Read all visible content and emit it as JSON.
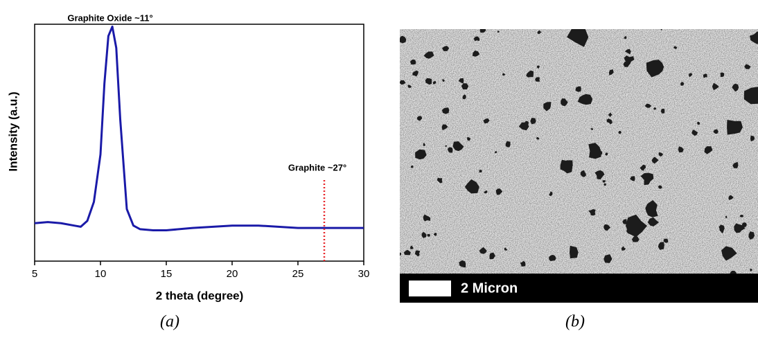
{
  "chart_data": {
    "type": "line",
    "ylabel": "Intensity (a.u.)",
    "xlabel": "2 theta (degree)",
    "caption": "(a)",
    "x": [
      5,
      6,
      7,
      8,
      8.5,
      9,
      9.5,
      10,
      10.3,
      10.6,
      10.9,
      11.2,
      11.5,
      12,
      12.5,
      13,
      14,
      15,
      17,
      20,
      22,
      25,
      27,
      30
    ],
    "series": [
      {
        "color": "#1a1aa8",
        "values": [
          16,
          16.5,
          16,
          15,
          14.5,
          17,
          25,
          45,
          75,
          95,
          99,
          90,
          60,
          22,
          15,
          13.5,
          13,
          13,
          14,
          15,
          15,
          14,
          14,
          14
        ]
      }
    ],
    "xlim": [
      5,
      30
    ],
    "xticks": [
      5,
      10,
      15,
      20,
      25,
      30
    ],
    "ylim": [
      0,
      100
    ],
    "annotations": [
      {
        "text": "Graphite Oxide ~11°",
        "x": 11
      },
      {
        "text": "Graphite ~27°",
        "x": 27,
        "line_color": "#e8262a"
      }
    ]
  },
  "image": {
    "scale_label": "2 Micron",
    "caption": "(b)"
  }
}
